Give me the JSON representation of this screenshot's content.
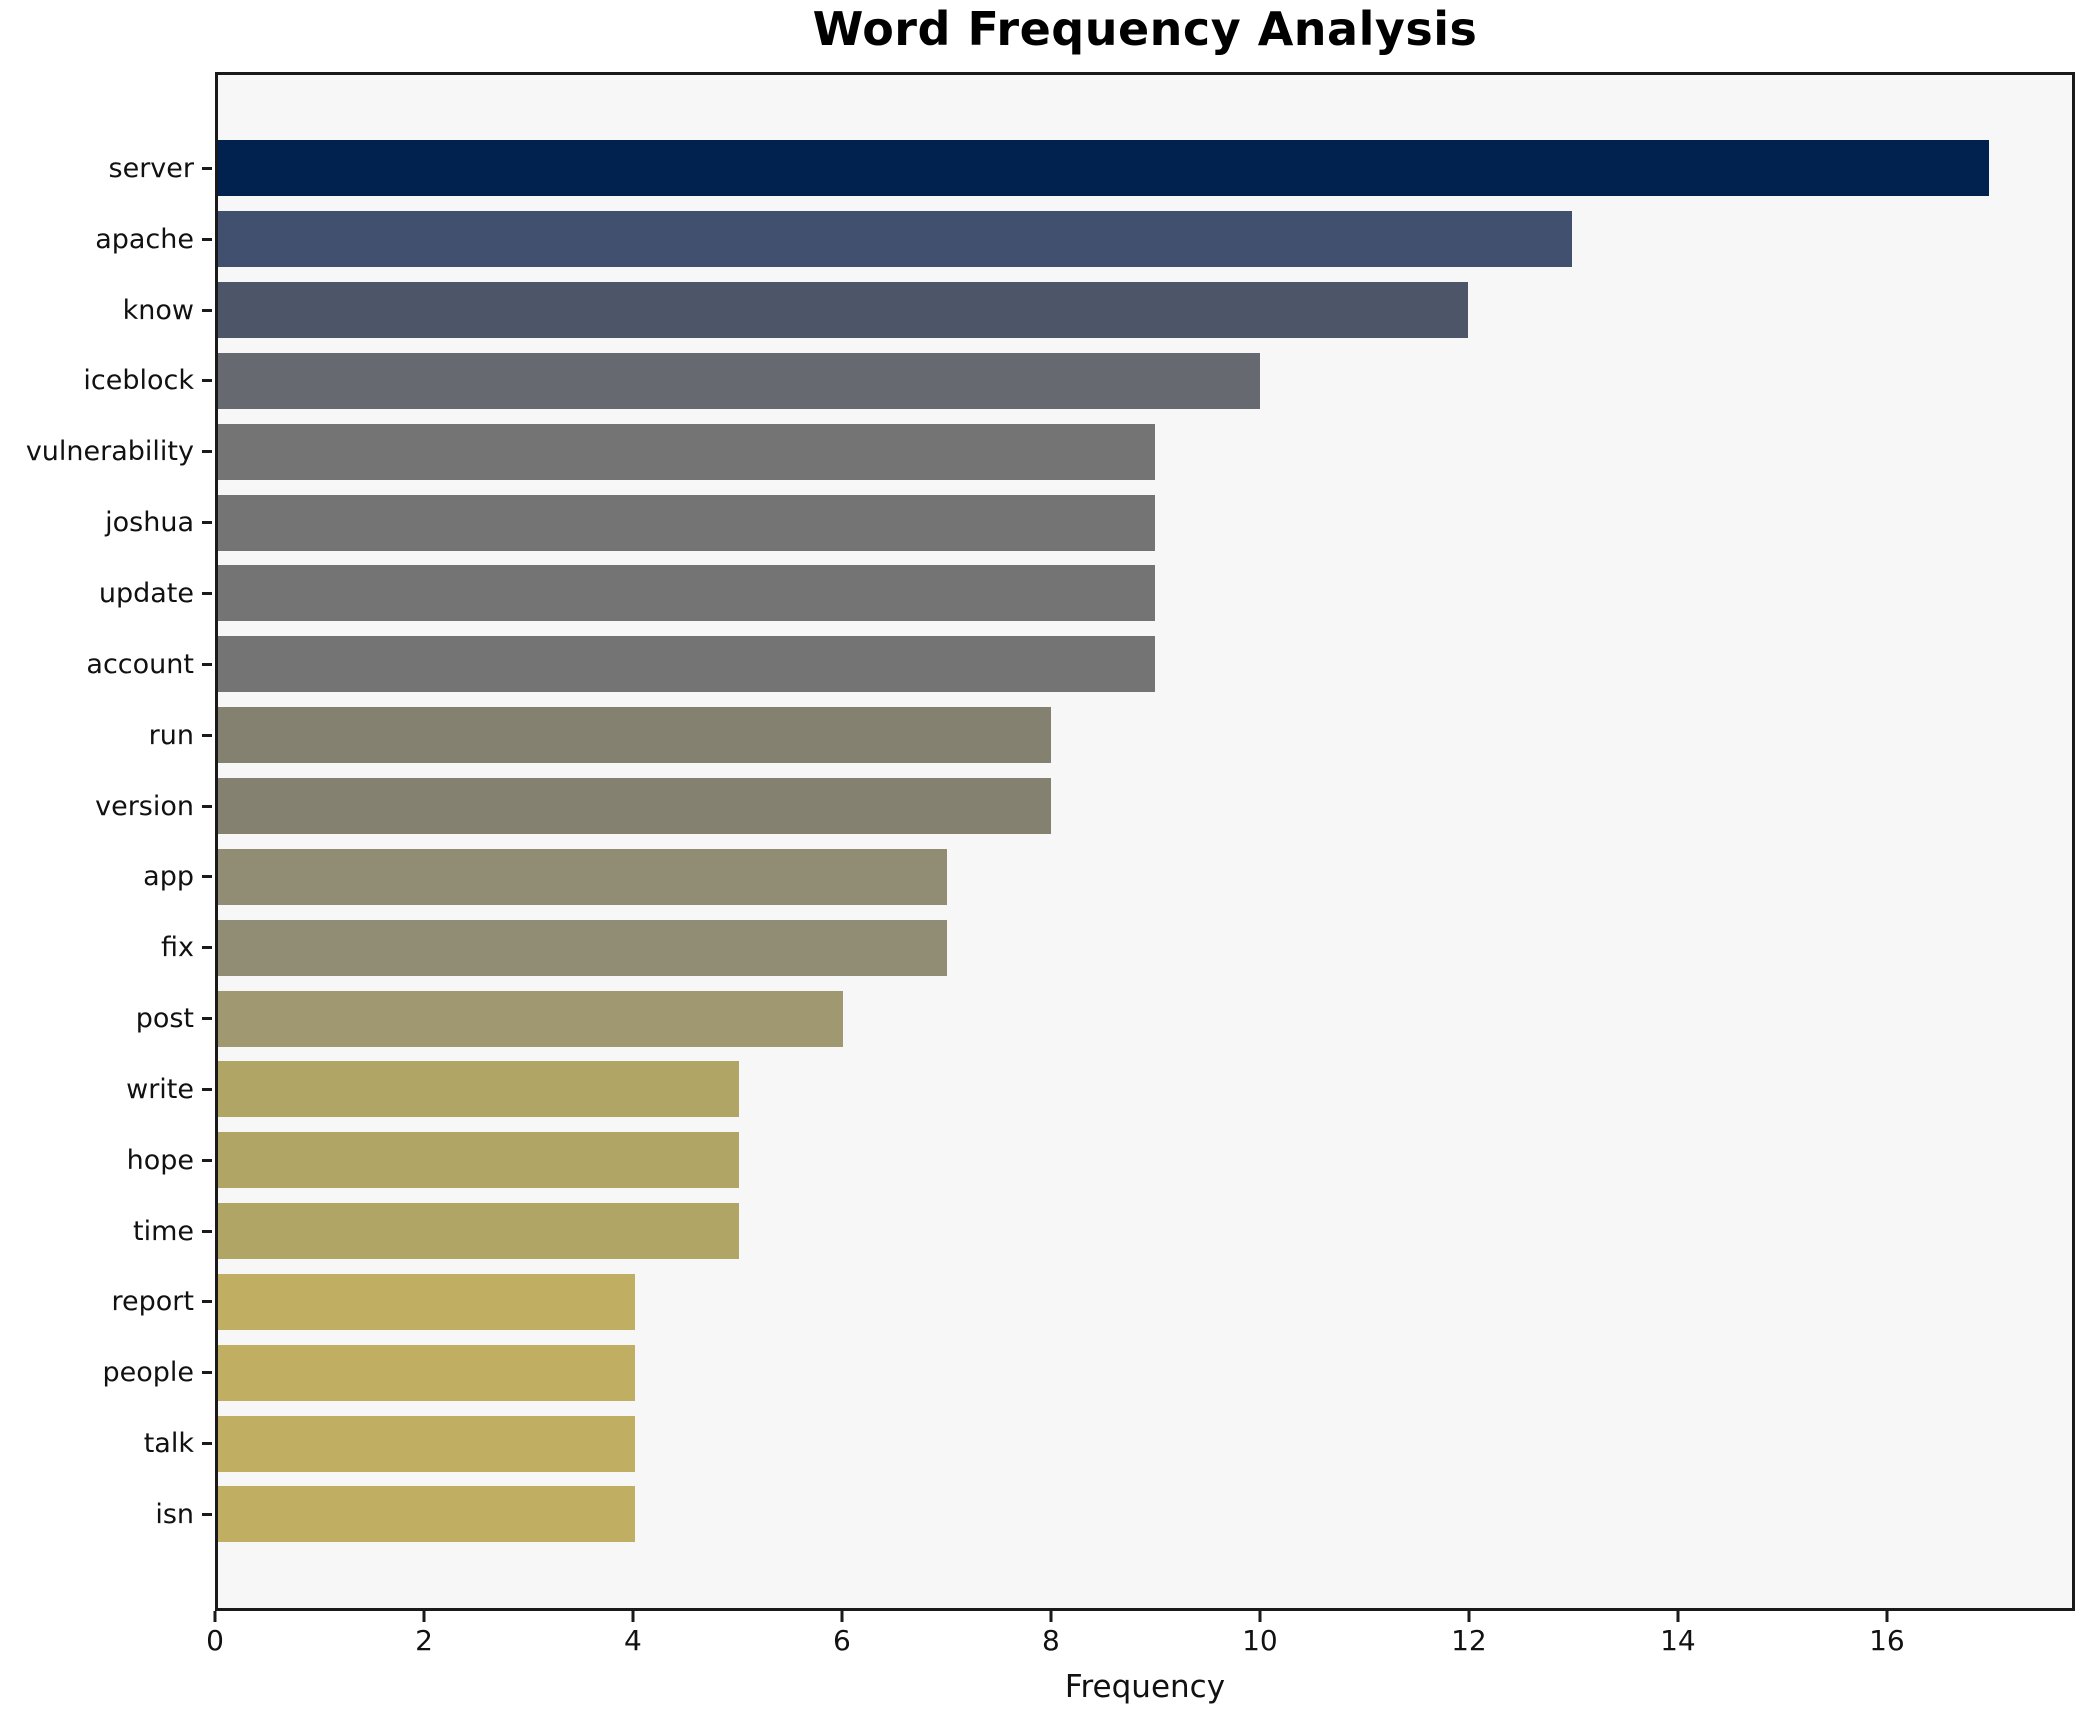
{
  "chart_data": {
    "type": "bar",
    "orientation": "horizontal",
    "title": "Word Frequency Analysis",
    "xlabel": "Frequency",
    "ylabel": "",
    "categories": [
      "server",
      "apache",
      "know",
      "iceblock",
      "vulnerability",
      "joshua",
      "update",
      "account",
      "run",
      "version",
      "app",
      "fix",
      "post",
      "write",
      "hope",
      "time",
      "report",
      "people",
      "talk",
      "isn"
    ],
    "values": [
      17,
      13,
      12,
      10,
      9,
      9,
      9,
      9,
      8,
      8,
      7,
      7,
      6,
      5,
      5,
      5,
      4,
      4,
      4,
      4
    ],
    "bar_colors": [
      "#01224e",
      "#40506e",
      "#4d5569",
      "#66696f",
      "#747474",
      "#747474",
      "#747474",
      "#747474",
      "#848170",
      "#848170",
      "#918d74",
      "#918d74",
      "#a09871",
      "#b1a566",
      "#b1a566",
      "#b1a566",
      "#c0ae63",
      "#c0ae63",
      "#c0ae63",
      "#c0ae63"
    ],
    "xlim": [
      0,
      17.8
    ],
    "xticks": [
      0,
      2,
      4,
      6,
      8,
      10,
      12,
      14,
      16
    ],
    "grid": false,
    "legend_position": "none",
    "plot_background": "#f7f7f8",
    "figure_background": "#ffffff",
    "spine_color": "#1a1a1a"
  }
}
